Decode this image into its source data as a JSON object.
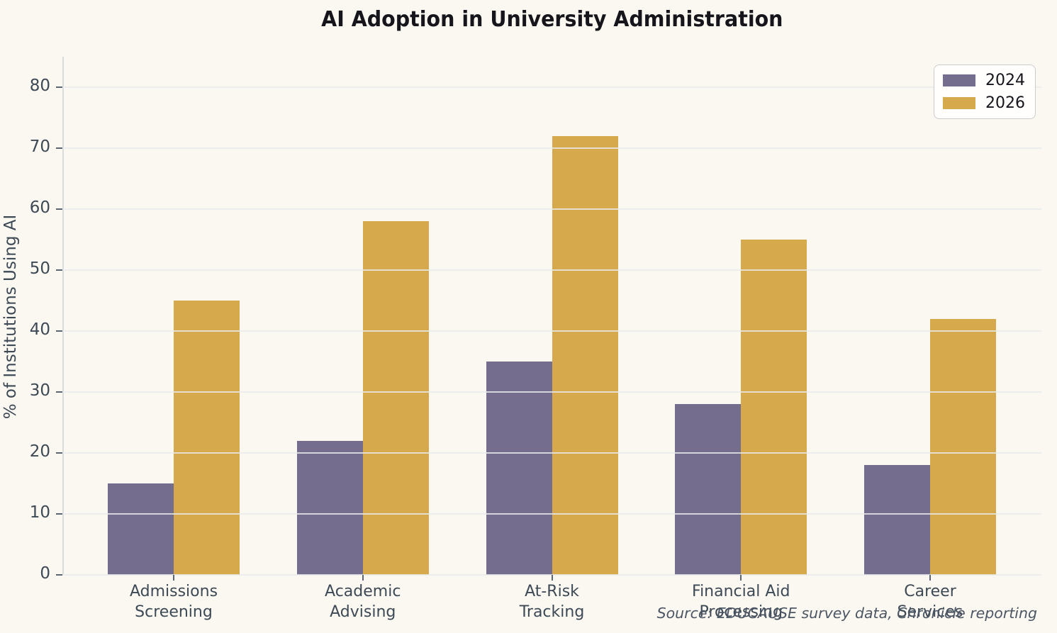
{
  "chart_data": {
    "type": "bar",
    "title": "AI Adoption in University Administration",
    "ylabel": "% of Institutions Using AI",
    "xlabel": "",
    "categories": [
      "Admissions\nScreening",
      "Academic\nAdvising",
      "At-Risk\nTracking",
      "Financial Aid\nProcessing",
      "Career\nServices"
    ],
    "series": [
      {
        "name": "2024",
        "color": "#756D8E",
        "values": [
          15,
          22,
          35,
          28,
          18
        ]
      },
      {
        "name": "2026",
        "color": "#D5A94C",
        "values": [
          45,
          58,
          72,
          55,
          42
        ]
      }
    ],
    "yticks": [
      0,
      10,
      20,
      30,
      40,
      50,
      60,
      70,
      80
    ],
    "ylim": [
      0,
      85
    ],
    "grid": true,
    "legend_position": "upper right",
    "source_note": "Source: EDUCAUSE survey data, Chronicle reporting",
    "colors": {
      "background": "#FAF8F0",
      "grid": "#E8ECEA",
      "spine": "#D9DCD9",
      "tick_mark": "#5B6570",
      "tick_text": "#3E4956",
      "title_text": "#15151B",
      "source_text": "#4C5665"
    }
  }
}
